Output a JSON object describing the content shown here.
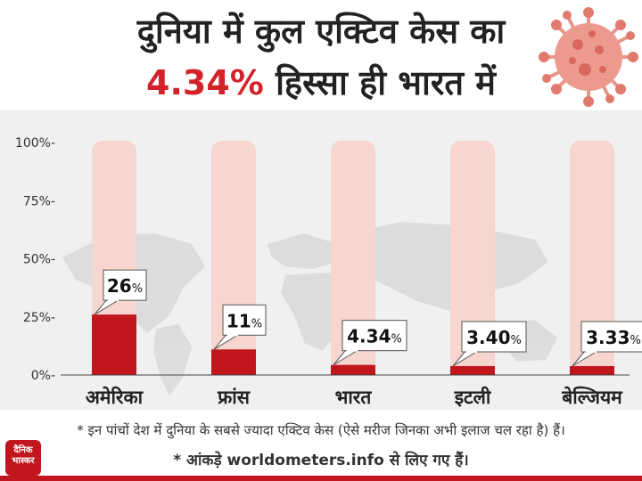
{
  "title": {
    "line1": "दुनिया में कुल एक्टिव केस का",
    "line2_highlight": "4.34%",
    "line2_rest": " हिस्सा ही भारत में"
  },
  "chart_data": {
    "type": "bar",
    "categories": [
      "अमेरिका",
      "फ्रांस",
      "भारत",
      "इटली",
      "बेल्जियम"
    ],
    "values": [
      26,
      11,
      4.34,
      3.4,
      3.33
    ],
    "value_labels": [
      "26",
      "11",
      "4.34",
      "3.40",
      "3.33"
    ],
    "unit": "%",
    "ylim": [
      0,
      100
    ],
    "yticks": [
      "0%-",
      "25%-",
      "50%-",
      "75%-",
      "100%-"
    ],
    "colors": {
      "bar": "#c1161d",
      "track": "#f6d6cf"
    },
    "grid": false
  },
  "footer": {
    "note1": "* इन पांचों देश में दुनिया के सबसे ज्यादा एक्टिव केस (ऐसे मरीज जिनका अभी इलाज चल रहा है) हैं।",
    "note2": "* आंकड़े worldometers.info से लिए गए हैं।",
    "logo": "दैनिक भास्कर"
  }
}
